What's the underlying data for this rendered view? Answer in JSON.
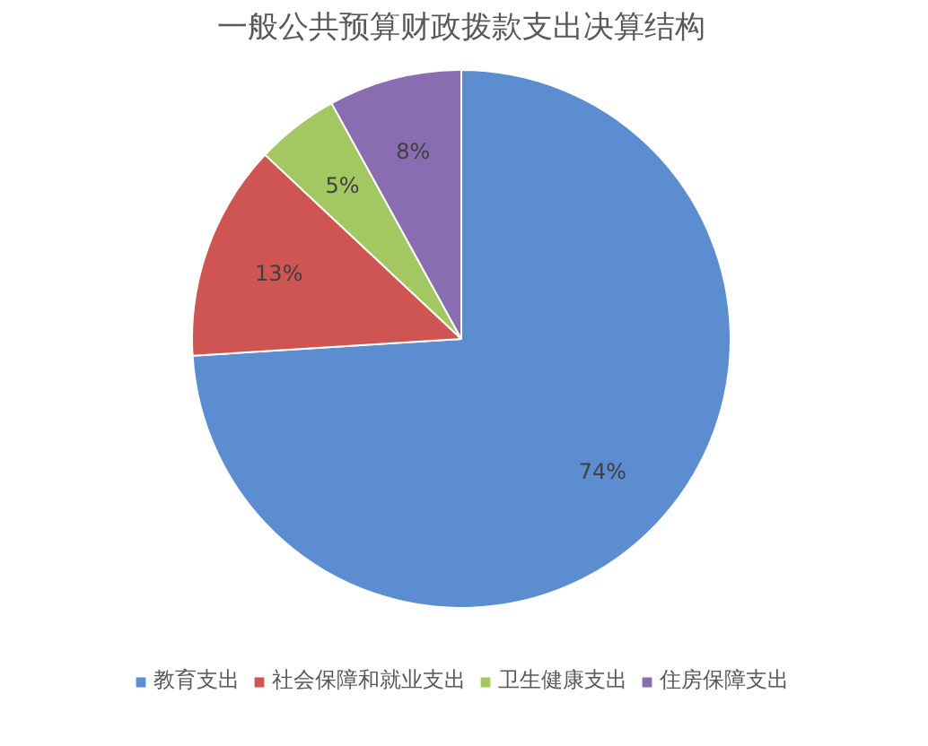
{
  "chart_data": {
    "type": "pie",
    "title": "一般公共预算财政拨款支出决算结构",
    "categories": [
      "教育支出",
      "社会保障和就业支出",
      "卫生健康支出",
      "住房保障支出"
    ],
    "values": [
      74,
      13,
      5,
      8
    ],
    "colors": [
      "#5b8dd0",
      "#cf5552",
      "#a3c861",
      "#8a6cb0"
    ],
    "value_labels": [
      "74%",
      "13%",
      "5%",
      "8%"
    ],
    "legend": "bottom"
  }
}
